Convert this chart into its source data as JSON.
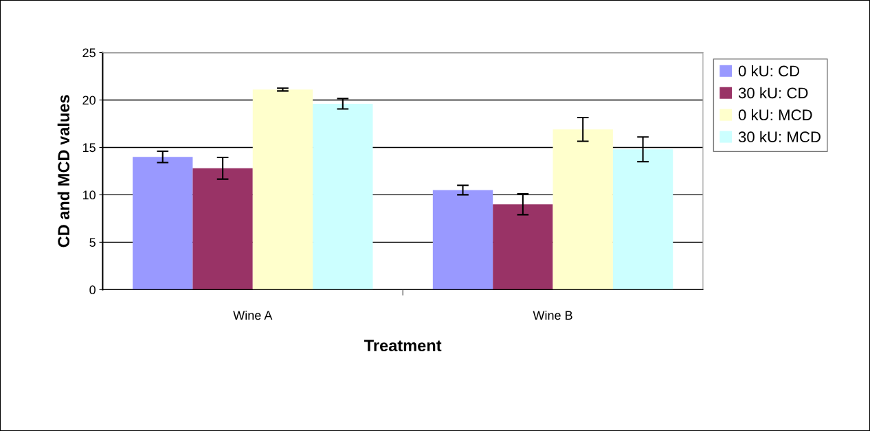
{
  "chart_data": {
    "type": "bar",
    "xlabel": "Treatment",
    "ylabel": "CD and MCD values",
    "categories": [
      "Wine A",
      "Wine B"
    ],
    "series": [
      {
        "name": "0 kU: CD",
        "color": "#9999ff",
        "values": [
          14.0,
          10.5
        ],
        "errors": [
          0.6,
          0.5
        ]
      },
      {
        "name": "30 kU: CD",
        "color": "#993366",
        "values": [
          12.8,
          9.0
        ],
        "errors": [
          1.15,
          1.1
        ]
      },
      {
        "name": "0 kU: MCD",
        "color": "#ffffcc",
        "values": [
          21.1,
          16.9
        ],
        "errors": [
          0.15,
          1.25
        ]
      },
      {
        "name": "30 kU: MCD",
        "color": "#ccffff",
        "values": [
          19.6,
          14.8
        ],
        "errors": [
          0.55,
          1.3
        ]
      }
    ],
    "ylim": [
      0,
      25
    ],
    "yticks": [
      0,
      5,
      10,
      15,
      20,
      25
    ],
    "grid": "y",
    "legend": "right"
  }
}
